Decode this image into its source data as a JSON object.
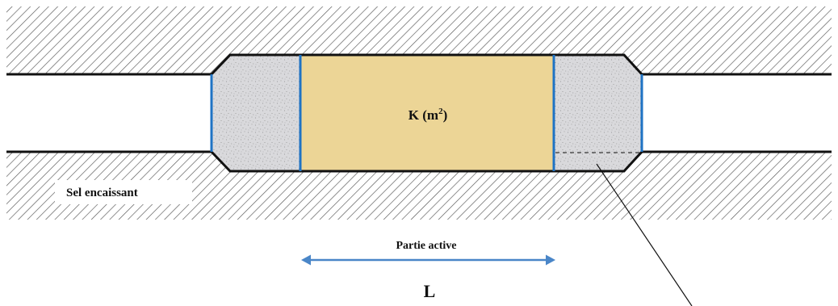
{
  "labels": {
    "permeability": "K (m",
    "permeability_exp": "2",
    "permeability_close": ")",
    "host_salt": "Sel encaissant",
    "active_part": "Partie active",
    "length": "L"
  },
  "colors": {
    "background": "#ffffff",
    "hatch": "#555555",
    "wall_line": "#111111",
    "concrete_fill": "#d9d9dc",
    "concrete_dots": "#8a8a8a",
    "active_fill": "#ecd596",
    "interface_blue": "#1f73c4",
    "arrow_blue": "#4a86c8"
  },
  "icons": {
    "hatching": "diagonal-hatch-pattern",
    "arrow": "double-headed-arrow"
  }
}
